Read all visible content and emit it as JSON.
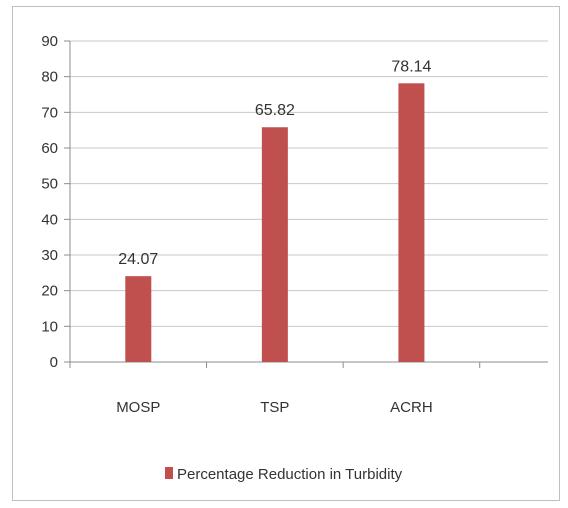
{
  "chart_data": {
    "type": "bar",
    "categories": [
      "MOSP",
      "TSP",
      "ACRH"
    ],
    "series": [
      {
        "name": "Percentage Reduction in Turbidity",
        "values": [
          24.07,
          65.82,
          78.14
        ],
        "color": "#c0504d"
      }
    ],
    "data_labels": [
      "24.07",
      "65.82",
      "78.14"
    ],
    "yticks": [
      "0",
      "10",
      "20",
      "30",
      "40",
      "50",
      "60",
      "70",
      "80",
      "90"
    ],
    "ylim": [
      0,
      90
    ],
    "grid": true,
    "legend_position": "bottom",
    "gridline_color": "#c8c8c8"
  }
}
